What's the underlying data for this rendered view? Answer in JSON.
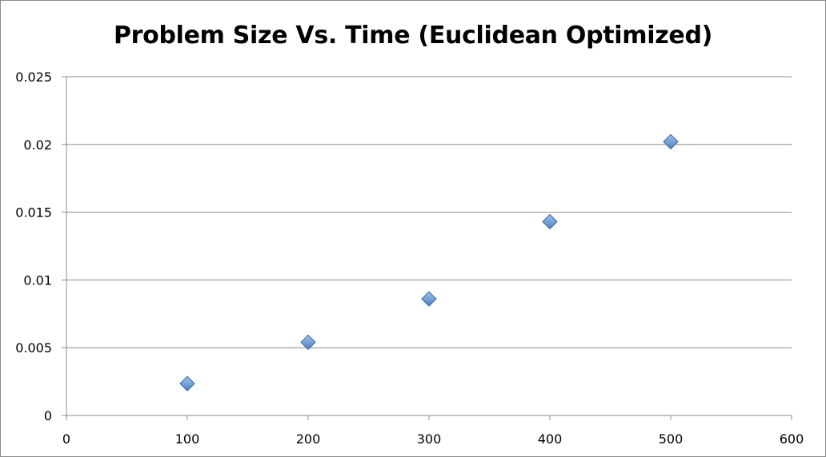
{
  "chart_data": {
    "type": "scatter",
    "title": "Problem Size Vs. Time (Euclidean Optimized)",
    "xlabel": "",
    "ylabel": "",
    "x": [
      100,
      200,
      300,
      400,
      500
    ],
    "series": [
      {
        "values": [
          0.00235,
          0.0054,
          0.0086,
          0.0143,
          0.0202
        ]
      }
    ],
    "xlim": [
      0,
      600
    ],
    "ylim": [
      0,
      0.025
    ],
    "xticks": [
      "0",
      "100",
      "200",
      "300",
      "400",
      "500",
      "600"
    ],
    "yticks": [
      "0",
      "0.005",
      "0.01",
      "0.015",
      "0.02",
      "0.025"
    ],
    "grid": "horizontal",
    "legend": "none",
    "marker": "diamond",
    "colors": {
      "marker_fill": "#4f81bd",
      "marker_fill_light": "#9dc3f0",
      "marker_stroke": "#3a67a8",
      "gridline": "#8c8c8c",
      "axis": "#8c8c8c"
    }
  }
}
